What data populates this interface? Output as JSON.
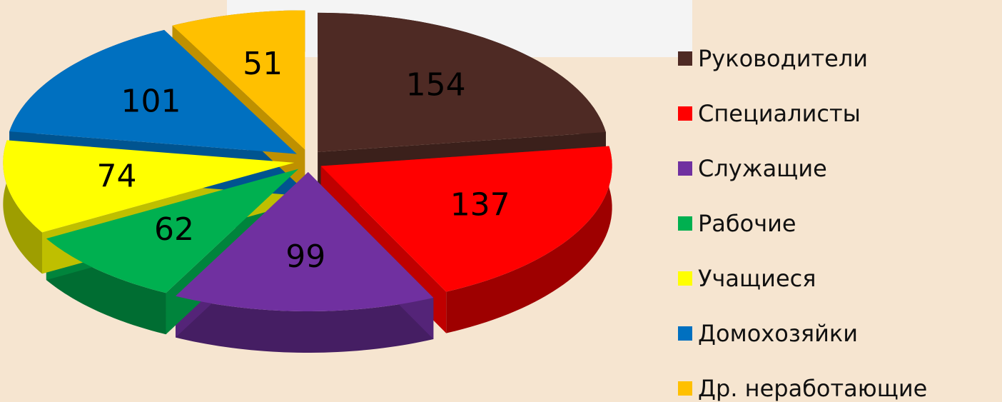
{
  "chart_data": {
    "type": "pie",
    "categories": [
      "Руководители",
      "Специалисты",
      "Служащие",
      "Рабочие",
      "Учащиеся",
      "Домохозяйки",
      "Др. неработающие"
    ],
    "values": [
      154,
      137,
      99,
      62,
      74,
      101,
      51
    ],
    "colors": [
      "#4e2a24",
      "#ff0000",
      "#7030a0",
      "#00b050",
      "#ffff00",
      "#0070c0",
      "#ffc000"
    ],
    "legend": "right"
  }
}
